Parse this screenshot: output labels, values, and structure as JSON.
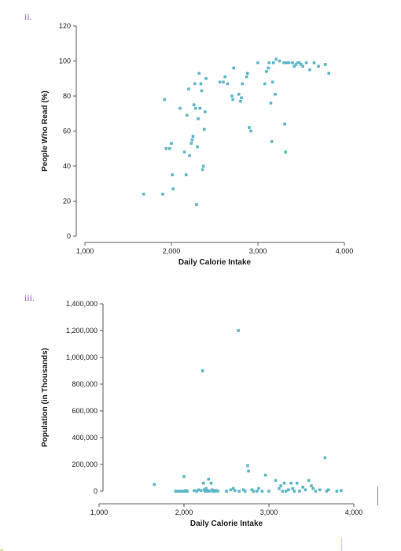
{
  "panels": [
    {
      "label": "ii."
    },
    {
      "label": "iii."
    }
  ],
  "colors": {
    "point": "#5fb8c9",
    "label": "#9b59b6"
  },
  "chart_data": [
    {
      "type": "scatter",
      "xlabel": "Daily Calorie Intake",
      "ylabel": "People Who Read (%)",
      "xlim": [
        1000,
        4000
      ],
      "ylim": [
        0,
        120
      ],
      "xticks": [
        1000,
        2000,
        3000,
        4000
      ],
      "xtick_labels": [
        "1,000",
        "2,000",
        "3,000",
        "4,000"
      ],
      "yticks": [
        0,
        20,
        40,
        60,
        80,
        100,
        120
      ],
      "ytick_labels": [
        "0",
        "20",
        "40",
        "60",
        "80",
        "100",
        "120"
      ],
      "grid": false,
      "points": [
        [
          1680,
          24
        ],
        [
          1900,
          24
        ],
        [
          1920,
          78
        ],
        [
          1940,
          50
        ],
        [
          1980,
          50
        ],
        [
          2000,
          53
        ],
        [
          2010,
          35
        ],
        [
          2020,
          27
        ],
        [
          2100,
          73
        ],
        [
          2150,
          48
        ],
        [
          2170,
          35
        ],
        [
          2180,
          69
        ],
        [
          2200,
          84
        ],
        [
          2210,
          46
        ],
        [
          2230,
          53
        ],
        [
          2240,
          55
        ],
        [
          2250,
          57
        ],
        [
          2260,
          75
        ],
        [
          2270,
          87
        ],
        [
          2280,
          73
        ],
        [
          2290,
          18
        ],
        [
          2300,
          51
        ],
        [
          2310,
          67
        ],
        [
          2320,
          93
        ],
        [
          2330,
          73
        ],
        [
          2340,
          87
        ],
        [
          2350,
          83
        ],
        [
          2360,
          38
        ],
        [
          2370,
          40
        ],
        [
          2380,
          61
        ],
        [
          2390,
          71
        ],
        [
          2400,
          90
        ],
        [
          2560,
          88
        ],
        [
          2600,
          88
        ],
        [
          2620,
          91
        ],
        [
          2650,
          87
        ],
        [
          2700,
          80
        ],
        [
          2710,
          78
        ],
        [
          2720,
          96
        ],
        [
          2780,
          81
        ],
        [
          2800,
          77
        ],
        [
          2810,
          79
        ],
        [
          2820,
          87
        ],
        [
          2870,
          91
        ],
        [
          2880,
          93
        ],
        [
          2900,
          62
        ],
        [
          2920,
          60
        ],
        [
          3000,
          99
        ],
        [
          3080,
          87
        ],
        [
          3100,
          94
        ],
        [
          3120,
          96
        ],
        [
          3130,
          99
        ],
        [
          3150,
          76
        ],
        [
          3160,
          54
        ],
        [
          3170,
          88
        ],
        [
          3180,
          99
        ],
        [
          3200,
          81
        ],
        [
          3210,
          101
        ],
        [
          3250,
          100
        ],
        [
          3300,
          99
        ],
        [
          3310,
          64
        ],
        [
          3320,
          48
        ],
        [
          3330,
          99
        ],
        [
          3360,
          99
        ],
        [
          3400,
          99
        ],
        [
          3420,
          97
        ],
        [
          3440,
          98
        ],
        [
          3460,
          99
        ],
        [
          3480,
          99
        ],
        [
          3500,
          98
        ],
        [
          3520,
          97
        ],
        [
          3560,
          99
        ],
        [
          3600,
          95
        ],
        [
          3650,
          99
        ],
        [
          3700,
          97
        ],
        [
          3780,
          98
        ],
        [
          3820,
          93
        ]
      ]
    },
    {
      "type": "scatter",
      "xlabel": "Daily Calorie Intake",
      "ylabel": "Population (in Thousands)",
      "xlim": [
        1000,
        4000
      ],
      "ylim": [
        0,
        1400000
      ],
      "xticks": [
        1000,
        2000,
        3000,
        4000
      ],
      "xtick_labels": [
        "1,000",
        "2,000",
        "3,000",
        "4,000"
      ],
      "yticks": [
        0,
        200000,
        400000,
        600000,
        800000,
        1000000,
        1200000,
        1400000
      ],
      "ytick_labels": [
        "0",
        "200,000",
        "400,000",
        "600,000",
        "800,000",
        "1,000,000",
        "1,200,000",
        "1,400,000"
      ],
      "grid": false,
      "points": [
        [
          1650,
          50000
        ],
        [
          1900,
          0
        ],
        [
          1930,
          0
        ],
        [
          1950,
          0
        ],
        [
          1980,
          0
        ],
        [
          2000,
          110000
        ],
        [
          2010,
          0
        ],
        [
          2020,
          5000
        ],
        [
          2040,
          0
        ],
        [
          2120,
          5000
        ],
        [
          2150,
          0
        ],
        [
          2170,
          10000
        ],
        [
          2200,
          5000
        ],
        [
          2220,
          900000
        ],
        [
          2230,
          60000
        ],
        [
          2240,
          10000
        ],
        [
          2250,
          0
        ],
        [
          2260,
          20000
        ],
        [
          2270,
          0
        ],
        [
          2280,
          5000
        ],
        [
          2290,
          90000
        ],
        [
          2300,
          0
        ],
        [
          2320,
          60000
        ],
        [
          2330,
          10000
        ],
        [
          2340,
          0
        ],
        [
          2350,
          5000
        ],
        [
          2360,
          0
        ],
        [
          2380,
          5000
        ],
        [
          2400,
          0
        ],
        [
          2500,
          0
        ],
        [
          2550,
          10000
        ],
        [
          2580,
          20000
        ],
        [
          2600,
          5000
        ],
        [
          2640,
          1200000
        ],
        [
          2650,
          0
        ],
        [
          2700,
          10000
        ],
        [
          2720,
          0
        ],
        [
          2750,
          190000
        ],
        [
          2760,
          150000
        ],
        [
          2800,
          10000
        ],
        [
          2820,
          0
        ],
        [
          2860,
          0
        ],
        [
          2880,
          20000
        ],
        [
          2920,
          0
        ],
        [
          2960,
          120000
        ],
        [
          3000,
          0
        ],
        [
          3080,
          80000
        ],
        [
          3120,
          20000
        ],
        [
          3140,
          40000
        ],
        [
          3160,
          0
        ],
        [
          3180,
          60000
        ],
        [
          3200,
          0
        ],
        [
          3230,
          10000
        ],
        [
          3260,
          60000
        ],
        [
          3280,
          20000
        ],
        [
          3300,
          0
        ],
        [
          3330,
          60000
        ],
        [
          3360,
          0
        ],
        [
          3400,
          30000
        ],
        [
          3430,
          10000
        ],
        [
          3470,
          80000
        ],
        [
          3500,
          40000
        ],
        [
          3520,
          20000
        ],
        [
          3550,
          0
        ],
        [
          3600,
          10000
        ],
        [
          3660,
          250000
        ],
        [
          3680,
          0
        ],
        [
          3700,
          10000
        ],
        [
          3800,
          0
        ],
        [
          3850,
          5000
        ]
      ]
    }
  ]
}
